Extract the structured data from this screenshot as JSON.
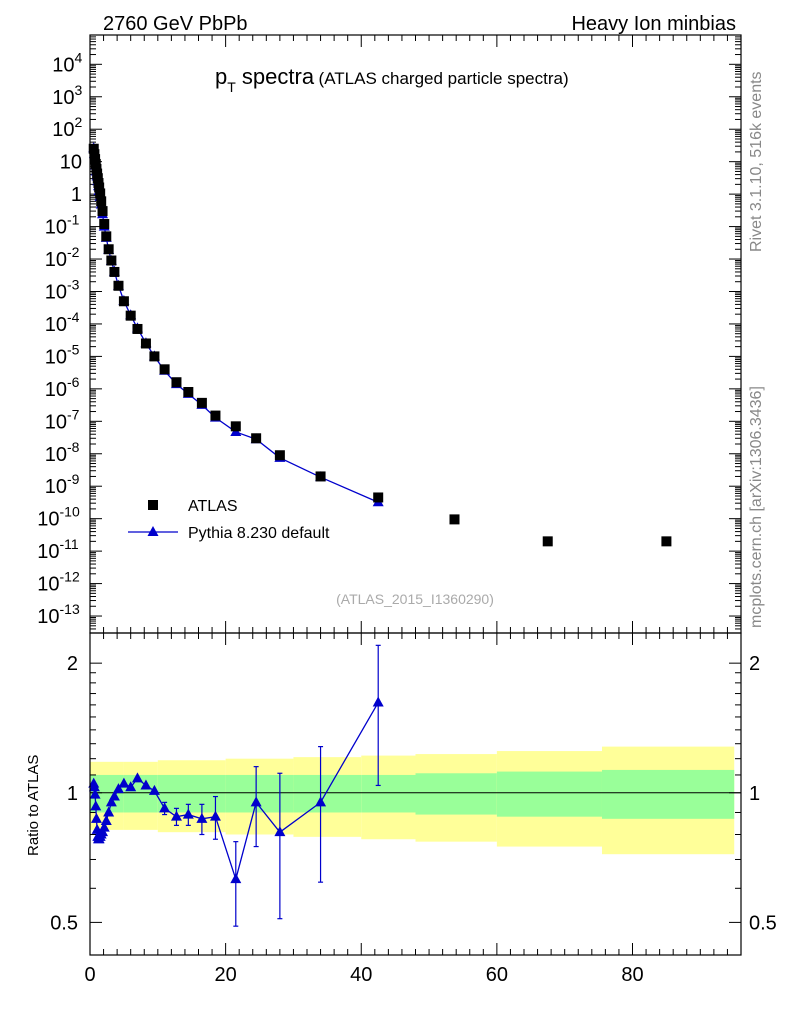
{
  "header": {
    "left": "2760 GeV PbPb",
    "right": "Heavy Ion minbias"
  },
  "side": {
    "rivet": "Rivet 3.1.10,  516k events",
    "mcplots": "mcplots.cern.ch [arXiv:1306.3436]"
  },
  "title": {
    "main": "p",
    "sub": "T",
    "rest": " spectra",
    "paren": "(ATLAS charged particle spectra)"
  },
  "watermark": "(ATLAS_2015_I1360290)",
  "ratio_ylabel": "Ratio to ATLAS",
  "colors": {
    "data": "#000000",
    "mc": "#0000cc",
    "band_inner": "#99ff99",
    "band_outer": "#ffff99"
  },
  "chart_data": [
    {
      "type": "scatter",
      "yscale": "log",
      "xlim": [
        0,
        96
      ],
      "ylim": [
        3e-14,
        80000.0
      ],
      "ytick_labels": [
        "10^{4}",
        "10^{3}",
        "10^{2}",
        "10",
        "1",
        "10^{-1}",
        "10^{-2}",
        "10^{-3}",
        "10^{-4}",
        "10^{-5}",
        "10^{-6}",
        "10^{-7}",
        "10^{-8}",
        "10^{-9}",
        "10^{-10}",
        "10^{-11}",
        "10^{-12}",
        "10^{-13}"
      ],
      "legend": {
        "position": "bottom-left",
        "entries": [
          "ATLAS",
          "Pythia 8.230 default"
        ]
      },
      "series": [
        {
          "name": "ATLAS",
          "marker": "square",
          "x": [
            0.55,
            0.65,
            0.75,
            0.85,
            0.95,
            1.05,
            1.15,
            1.25,
            1.35,
            1.5,
            1.65,
            1.85,
            2.1,
            2.4,
            2.75,
            3.15,
            3.6,
            4.2,
            5.0,
            6.0,
            7.0,
            8.25,
            9.5,
            11.0,
            12.75,
            14.5,
            16.5,
            18.5,
            21.5,
            24.5,
            28.0,
            34.0,
            42.5,
            53.75,
            67.5,
            85.0
          ],
          "y": [
            25,
            17,
            12,
            8.5,
            6,
            4.3,
            3.1,
            2.2,
            1.6,
            1.05,
            0.6,
            0.3,
            0.12,
            0.05,
            0.02,
            0.009,
            0.004,
            0.0015,
            0.0005,
            0.00018,
            7e-05,
            2.5e-05,
            1e-05,
            4e-06,
            1.6e-06,
            8e-07,
            3.7e-07,
            1.5e-07,
            7e-08,
            3e-08,
            9e-09,
            2e-09,
            4.5e-10,
            9.5e-11,
            2e-11,
            2e-11
          ]
        },
        {
          "name": "Pythia 8.230 default",
          "marker": "triangle",
          "x": [
            0.55,
            0.65,
            0.75,
            0.85,
            0.95,
            1.05,
            1.15,
            1.25,
            1.35,
            1.5,
            1.65,
            1.85,
            2.1,
            2.4,
            2.75,
            3.15,
            3.6,
            4.2,
            5.0,
            6.0,
            7.0,
            8.25,
            9.5,
            11.0,
            12.75,
            14.5,
            16.5,
            18.5,
            21.5,
            24.5,
            28.0,
            34.0,
            42.5
          ],
          "y": [
            26,
            17.5,
            12,
            7.7,
            5,
            3.5,
            2.5,
            1.75,
            1.25,
            0.82,
            0.48,
            0.24,
            0.1,
            0.045,
            0.019,
            0.0088,
            0.0041,
            0.0015,
            0.00051,
            0.000185,
            7.3e-05,
            2.55e-05,
            1e-05,
            3.6e-06,
            1.4e-06,
            7e-07,
            3.2e-07,
            1.3e-07,
            4.7e-08,
            2.8e-08,
            7.5e-09,
            1.9e-09,
            3.2e-10
          ]
        }
      ]
    },
    {
      "type": "scatter",
      "xlim": [
        0,
        96
      ],
      "ylim": [
        0.42,
        2.35
      ],
      "yticks": [
        0.5,
        1,
        2
      ],
      "ytick_labels": [
        "0.5",
        "1",
        "2"
      ],
      "xticks": [
        0,
        20,
        40,
        60,
        80
      ],
      "xtick_labels": [
        "0",
        "20",
        "40",
        "60",
        "80"
      ],
      "ylabel": "Ratio to ATLAS",
      "reference_line": 1,
      "bands": {
        "edges": [
          0,
          5,
          10,
          20,
          30,
          40,
          48,
          60,
          75.5,
          95
        ],
        "inner": [
          0.1,
          0.1,
          0.1,
          0.1,
          0.1,
          0.1,
          0.11,
          0.12,
          0.13
        ],
        "outer": [
          0.18,
          0.18,
          0.19,
          0.2,
          0.21,
          0.22,
          0.23,
          0.25,
          0.28
        ]
      },
      "series": [
        {
          "name": "Pythia 8.230 default",
          "marker": "triangle",
          "x": [
            0.55,
            0.65,
            0.75,
            0.85,
            0.95,
            1.05,
            1.15,
            1.25,
            1.35,
            1.5,
            1.65,
            1.85,
            2.1,
            2.4,
            2.75,
            3.15,
            3.6,
            4.2,
            5.0,
            6.0,
            7.0,
            8.25,
            9.5,
            11.0,
            12.75,
            14.5,
            16.5,
            18.5,
            21.5,
            24.5,
            28.0,
            34.0,
            42.5
          ],
          "y": [
            1.05,
            1.03,
            0.99,
            0.93,
            0.87,
            0.82,
            0.79,
            0.78,
            0.78,
            0.79,
            0.8,
            0.81,
            0.83,
            0.86,
            0.9,
            0.95,
            0.98,
            1.02,
            1.05,
            1.03,
            1.08,
            1.04,
            1.01,
            0.92,
            0.88,
            0.89,
            0.87,
            0.88,
            0.63,
            0.95,
            0.81,
            0.95,
            1.62
          ],
          "err": [
            0.02,
            0.02,
            0.02,
            0.02,
            0.02,
            0.02,
            0.02,
            0.02,
            0.02,
            0.02,
            0.02,
            0.02,
            0.02,
            0.02,
            0.02,
            0.02,
            0.02,
            0.02,
            0.02,
            0.02,
            0.02,
            0.02,
            0.02,
            0.03,
            0.04,
            0.05,
            0.07,
            0.1,
            0.14,
            0.2,
            0.3,
            0.33,
            0.58
          ]
        }
      ]
    }
  ]
}
